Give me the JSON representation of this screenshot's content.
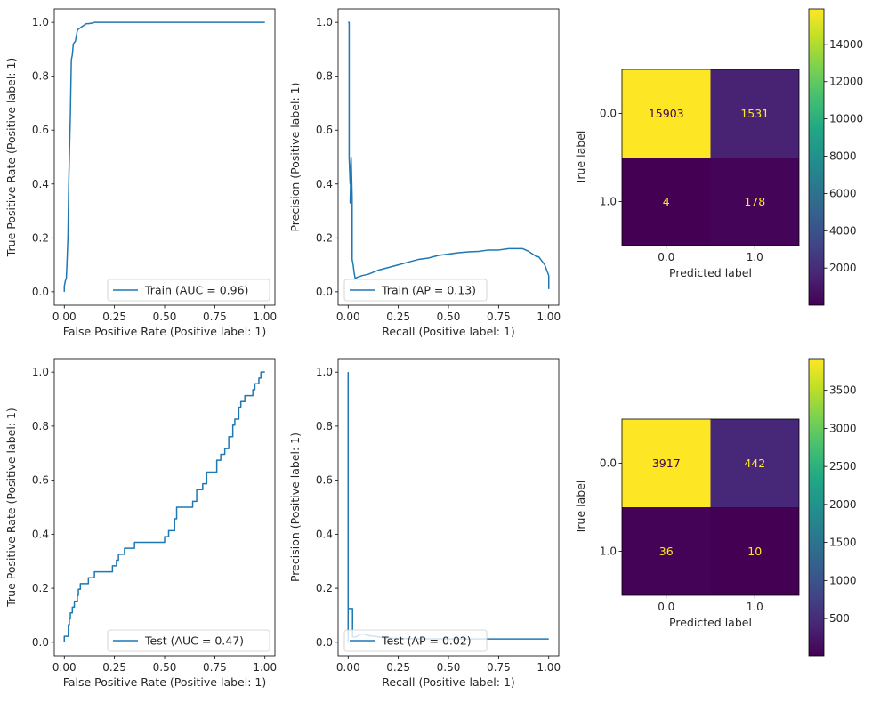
{
  "colors": {
    "line": "#1f77b4",
    "axis": "#000000",
    "legend_border": "#cccccc",
    "text_on_dark": "#fde725",
    "text_on_light": "#440154"
  },
  "chart_data": [
    {
      "id": "roc-train",
      "type": "line",
      "title": "",
      "xlabel": "False Positive Rate (Positive label: 1)",
      "ylabel": "True Positive Rate (Positive label: 1)",
      "xlim": [
        -0.05,
        1.05
      ],
      "ylim": [
        -0.05,
        1.05
      ],
      "xticks": [
        "0.00",
        "0.25",
        "0.50",
        "0.75",
        "1.00"
      ],
      "yticks": [
        "0.0",
        "0.2",
        "0.4",
        "0.6",
        "0.8",
        "1.0"
      ],
      "legend": "Train (AUC = 0.96)",
      "legend_loc": "lower-right",
      "series": [
        {
          "name": "Train (AUC = 0.96)",
          "x": [
            0.0,
            0.0,
            0.005,
            0.01,
            0.013,
            0.018,
            0.022,
            0.03,
            0.035,
            0.04,
            0.045,
            0.055,
            0.06,
            0.065,
            0.07,
            0.08,
            0.09,
            0.1,
            0.11,
            0.12,
            0.14,
            0.15,
            0.2,
            1.0
          ],
          "y": [
            0.0,
            0.02,
            0.04,
            0.05,
            0.1,
            0.2,
            0.4,
            0.65,
            0.86,
            0.88,
            0.92,
            0.93,
            0.95,
            0.97,
            0.975,
            0.98,
            0.985,
            0.99,
            0.995,
            0.995,
            0.997,
            1.0,
            1.0,
            1.0
          ]
        }
      ]
    },
    {
      "id": "pr-train",
      "type": "line",
      "title": "",
      "xlabel": "Recall (Positive label: 1)",
      "ylabel": "Precision (Positive label: 1)",
      "xlim": [
        -0.05,
        1.05
      ],
      "ylim": [
        -0.05,
        1.05
      ],
      "xticks": [
        "0.00",
        "0.25",
        "0.50",
        "0.75",
        "1.00"
      ],
      "yticks": [
        "0.0",
        "0.2",
        "0.4",
        "0.6",
        "0.8",
        "1.0"
      ],
      "legend": "Train (AP = 0.13)",
      "legend_loc": "lower-left",
      "series": [
        {
          "name": "Train (AP = 0.13)",
          "x": [
            1.0,
            1.0,
            0.995,
            0.99,
            0.985,
            0.98,
            0.97,
            0.96,
            0.95,
            0.94,
            0.92,
            0.9,
            0.87,
            0.85,
            0.8,
            0.75,
            0.7,
            0.65,
            0.6,
            0.55,
            0.5,
            0.45,
            0.4,
            0.35,
            0.3,
            0.25,
            0.2,
            0.15,
            0.1,
            0.07,
            0.05,
            0.035,
            0.03,
            0.025,
            0.02,
            0.02,
            0.015,
            0.01,
            0.015,
            0.01,
            0.005,
            0.005,
            0.0
          ],
          "y": [
            0.01,
            0.06,
            0.07,
            0.08,
            0.09,
            0.1,
            0.11,
            0.12,
            0.13,
            0.13,
            0.14,
            0.15,
            0.16,
            0.16,
            0.16,
            0.155,
            0.155,
            0.15,
            0.148,
            0.145,
            0.14,
            0.135,
            0.125,
            0.12,
            0.11,
            0.1,
            0.09,
            0.08,
            0.065,
            0.06,
            0.055,
            0.05,
            0.07,
            0.1,
            0.12,
            0.35,
            0.5,
            0.33,
            0.5,
            0.4,
            0.5,
            1.0,
            1.0
          ]
        }
      ]
    },
    {
      "id": "cm-train",
      "type": "heatmap",
      "xlabel": "Predicted label",
      "ylabel": "True label",
      "x_categories": [
        "0.0",
        "1.0"
      ],
      "y_categories": [
        "0.0",
        "1.0"
      ],
      "values": [
        [
          15903,
          1531
        ],
        [
          4,
          178
        ]
      ],
      "colormap": "viridis",
      "vmin": 4,
      "vmax": 15903,
      "colorbar_ticks": [
        2000,
        4000,
        6000,
        8000,
        10000,
        12000,
        14000
      ],
      "colorbar_tick_labels": [
        "2000",
        "4000",
        "6000",
        "8000",
        "10000",
        "12000",
        "14000"
      ]
    },
    {
      "id": "roc-test",
      "type": "line",
      "title": "",
      "xlabel": "False Positive Rate (Positive label: 1)",
      "ylabel": "True Positive Rate (Positive label: 1)",
      "xlim": [
        -0.05,
        1.05
      ],
      "ylim": [
        -0.05,
        1.05
      ],
      "xticks": [
        "0.00",
        "0.25",
        "0.50",
        "0.75",
        "1.00"
      ],
      "yticks": [
        "0.0",
        "0.2",
        "0.4",
        "0.6",
        "0.8",
        "1.0"
      ],
      "legend": "Test (AUC = 0.47)",
      "legend_loc": "lower-right",
      "series": [
        {
          "name": "Test (AUC = 0.47)",
          "x": [
            0.0,
            0.0,
            0.02,
            0.02,
            0.025,
            0.025,
            0.03,
            0.03,
            0.04,
            0.04,
            0.05,
            0.05,
            0.065,
            0.065,
            0.07,
            0.07,
            0.08,
            0.08,
            0.12,
            0.12,
            0.15,
            0.15,
            0.24,
            0.24,
            0.26,
            0.26,
            0.27,
            0.27,
            0.3,
            0.3,
            0.35,
            0.35,
            0.5,
            0.5,
            0.52,
            0.52,
            0.55,
            0.55,
            0.56,
            0.56,
            0.64,
            0.64,
            0.66,
            0.66,
            0.69,
            0.69,
            0.71,
            0.71,
            0.76,
            0.76,
            0.78,
            0.78,
            0.8,
            0.8,
            0.82,
            0.82,
            0.84,
            0.84,
            0.85,
            0.85,
            0.87,
            0.87,
            0.88,
            0.88,
            0.9,
            0.9,
            0.94,
            0.94,
            0.95,
            0.95,
            0.97,
            0.97,
            0.98,
            0.98,
            0.99,
            0.99,
            1.0
          ],
          "y": [
            0.0,
            0.022,
            0.022,
            0.065,
            0.065,
            0.087,
            0.087,
            0.109,
            0.109,
            0.13,
            0.13,
            0.152,
            0.152,
            0.174,
            0.174,
            0.196,
            0.196,
            0.217,
            0.217,
            0.239,
            0.239,
            0.261,
            0.261,
            0.283,
            0.283,
            0.304,
            0.304,
            0.326,
            0.326,
            0.348,
            0.348,
            0.37,
            0.37,
            0.391,
            0.391,
            0.413,
            0.413,
            0.457,
            0.457,
            0.5,
            0.5,
            0.522,
            0.522,
            0.565,
            0.565,
            0.587,
            0.587,
            0.63,
            0.63,
            0.674,
            0.674,
            0.696,
            0.696,
            0.717,
            0.717,
            0.761,
            0.761,
            0.804,
            0.804,
            0.826,
            0.826,
            0.87,
            0.87,
            0.891,
            0.891,
            0.913,
            0.913,
            0.935,
            0.935,
            0.957,
            0.957,
            0.978,
            0.978,
            1.0,
            1.0,
            1.0,
            1.0
          ]
        }
      ]
    },
    {
      "id": "pr-test",
      "type": "line",
      "title": "",
      "xlabel": "Recall (Positive label: 1)",
      "ylabel": "Precision (Positive label: 1)",
      "xlim": [
        -0.05,
        1.05
      ],
      "ylim": [
        -0.05,
        1.05
      ],
      "xticks": [
        "0.00",
        "0.25",
        "0.50",
        "0.75",
        "1.00"
      ],
      "yticks": [
        "0.0",
        "0.2",
        "0.4",
        "0.6",
        "0.8",
        "1.0"
      ],
      "legend": "Test (AP = 0.02)",
      "legend_loc": "lower-left",
      "series": [
        {
          "name": "Test (AP = 0.02)",
          "x": [
            1.0,
            0.7,
            0.5,
            0.3,
            0.2,
            0.15,
            0.1,
            0.08,
            0.06,
            0.04,
            0.022,
            0.022,
            0.0,
            0.0,
            0.0
          ],
          "y": [
            0.012,
            0.012,
            0.012,
            0.013,
            0.015,
            0.02,
            0.025,
            0.03,
            0.03,
            0.02,
            0.02,
            0.125,
            0.125,
            0.0,
            1.0
          ]
        }
      ]
    },
    {
      "id": "cm-test",
      "type": "heatmap",
      "xlabel": "Predicted label",
      "ylabel": "True label",
      "x_categories": [
        "0.0",
        "1.0"
      ],
      "y_categories": [
        "0.0",
        "1.0"
      ],
      "values": [
        [
          3917,
          442
        ],
        [
          36,
          10
        ]
      ],
      "colormap": "viridis",
      "vmin": 10,
      "vmax": 3917,
      "colorbar_ticks": [
        500,
        1000,
        1500,
        2000,
        2500,
        3000,
        3500
      ],
      "colorbar_tick_labels": [
        "500",
        "1000",
        "1500",
        "2000",
        "2500",
        "3000",
        "3500"
      ]
    }
  ]
}
